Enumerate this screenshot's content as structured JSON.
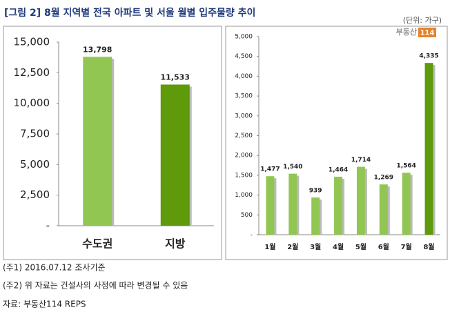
{
  "header": {
    "title": "[그림 2]  8월 지역별 전국 아파트 및 서울 월별 입주물량 추이",
    "unit": "(단위: 가구)",
    "logo": [
      "부동산",
      "114"
    ]
  },
  "chart_data": [
    {
      "type": "bar",
      "categories": [
        "수도권",
        "지방"
      ],
      "values": [
        13798,
        11533
      ],
      "value_labels": [
        "13,798",
        "11,533"
      ],
      "colors": [
        "#92c653",
        "#5f9a0a"
      ],
      "ylim": [
        0,
        15000
      ],
      "yticks": [
        {
          "value": 0,
          "label": "-"
        },
        {
          "value": 2500,
          "label": "2,500"
        },
        {
          "value": 5000,
          "label": "5,000"
        },
        {
          "value": 7500,
          "label": "7,500"
        },
        {
          "value": 10000,
          "label": "10,000"
        },
        {
          "value": 12500,
          "label": "12,500"
        },
        {
          "value": 15000,
          "label": "15,000"
        }
      ],
      "grid": false
    },
    {
      "type": "bar",
      "categories": [
        "1월",
        "2월",
        "3월",
        "4월",
        "5월",
        "6월",
        "7월",
        "8월"
      ],
      "values": [
        1477,
        1540,
        939,
        1464,
        1714,
        1269,
        1564,
        4335
      ],
      "value_labels": [
        "1,477",
        "1,540",
        "939",
        "1,464",
        "1,714",
        "1,269",
        "1,564",
        "4,335"
      ],
      "colors": [
        "#92c653",
        "#92c653",
        "#92c653",
        "#92c653",
        "#92c653",
        "#92c653",
        "#92c653",
        "#5f9a0a"
      ],
      "ylim": [
        0,
        5000
      ],
      "yticks": [
        {
          "value": 0,
          "label": "-"
        },
        500,
        {
          "value": 1000,
          "label": "1,000"
        },
        {
          "value": 1500,
          "label": "1,500"
        },
        {
          "value": 2000,
          "label": "2,000"
        },
        {
          "value": 2500,
          "label": "2,500"
        },
        {
          "value": 3000,
          "label": "3,000"
        },
        {
          "value": 3500,
          "label": "3,500"
        },
        {
          "value": 4000,
          "label": "4,000"
        },
        {
          "value": 4500,
          "label": "4,500"
        },
        {
          "value": 5000,
          "label": "5,000"
        }
      ],
      "grid": false
    }
  ],
  "notes": [
    "(주1) 2016.07.12 조사기준",
    "(주2) 위 자료는 건설사의 사정에 따라 변경될 수 있음",
    "자료: 부동산114 REPS"
  ]
}
